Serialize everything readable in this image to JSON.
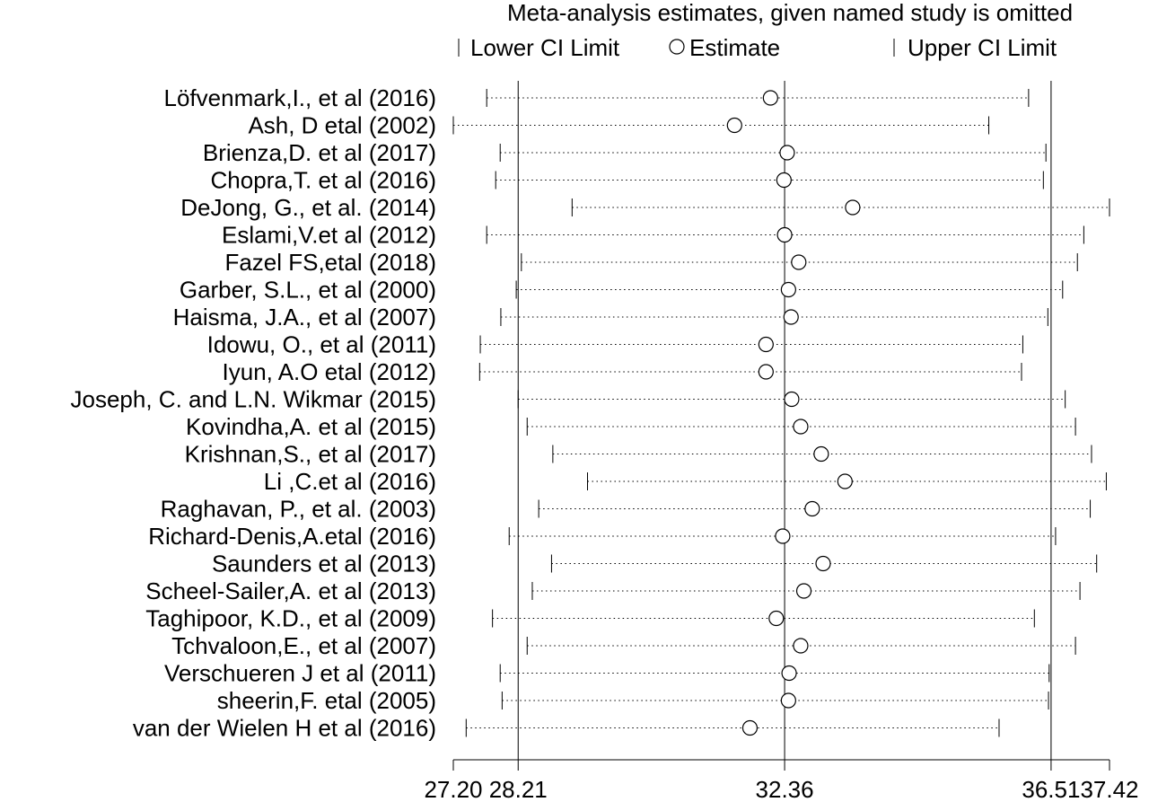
{
  "chart_data": {
    "type": "scatter",
    "title": "Meta-analysis estimates, given named study is omitted",
    "legend": {
      "placement": "top",
      "items": [
        {
          "symbol": "tick",
          "label": "Lower CI Limit"
        },
        {
          "symbol": "circle",
          "label": "Estimate"
        },
        {
          "symbol": "tick",
          "label": "Upper CI Limit"
        }
      ]
    },
    "x_ticks": [
      {
        "value": 27.2,
        "label": "27.20"
      },
      {
        "value": 28.21,
        "label": "28.21"
      },
      {
        "value": 32.36,
        "label": "32.36"
      },
      {
        "value": 36.51,
        "label": "36.51"
      },
      {
        "value": 37.42,
        "label": "37.42"
      }
    ],
    "vertical_reference_lines": [
      28.21,
      32.36,
      36.51
    ],
    "xlim": [
      27.2,
      37.42
    ],
    "studies": [
      {
        "label": "Löfvenmark,I., et al (2016)",
        "lower": 27.72,
        "estimate": 32.14,
        "upper": 36.16
      },
      {
        "label": "Ash, D etal  (2002)",
        "lower": 27.2,
        "estimate": 31.58,
        "upper": 35.54
      },
      {
        "label": "Brienza,D. et al (2017)",
        "lower": 27.93,
        "estimate": 32.4,
        "upper": 36.43
      },
      {
        "label": "Chopra,T. et al (2016)",
        "lower": 27.86,
        "estimate": 32.35,
        "upper": 36.39
      },
      {
        "label": "DeJong, G., et al. (2014)",
        "lower": 29.05,
        "estimate": 33.42,
        "upper": 37.42
      },
      {
        "label": "Eslami,V.et al (2012)",
        "lower": 27.72,
        "estimate": 32.36,
        "upper": 37.02
      },
      {
        "label": "Fazel FS,etal (2018)",
        "lower": 28.26,
        "estimate": 32.58,
        "upper": 36.92
      },
      {
        "label": "Garber, S.L., et al (2000)",
        "lower": 28.18,
        "estimate": 32.42,
        "upper": 36.69
      },
      {
        "label": "Haisma, J.A., et al  (2007)",
        "lower": 27.94,
        "estimate": 32.46,
        "upper": 36.46
      },
      {
        "label": "Idowu, O., et al  (2011)",
        "lower": 27.62,
        "estimate": 32.07,
        "upper": 36.07
      },
      {
        "label": "Iyun, A.O etal  (2012)",
        "lower": 27.61,
        "estimate": 32.07,
        "upper": 36.05
      },
      {
        "label": "Joseph, C. and L.N. Wikmar  (2015)",
        "lower": 28.21,
        "estimate": 32.47,
        "upper": 36.73
      },
      {
        "label": "Kovindha,A. et al (2015)",
        "lower": 28.35,
        "estimate": 32.61,
        "upper": 36.89
      },
      {
        "label": "Krishnan,S., et al  (2017)",
        "lower": 28.75,
        "estimate": 32.93,
        "upper": 37.14
      },
      {
        "label": "Li ,C.et al (2016)",
        "lower": 29.29,
        "estimate": 33.3,
        "upper": 37.37
      },
      {
        "label": "Raghavan, P., et al. (2003)",
        "lower": 28.53,
        "estimate": 32.79,
        "upper": 37.12
      },
      {
        "label": "Richard-Denis,A.etal (2016)",
        "lower": 28.07,
        "estimate": 32.33,
        "upper": 36.58
      },
      {
        "label": "Saunders et al (2013)",
        "lower": 28.73,
        "estimate": 32.96,
        "upper": 37.22
      },
      {
        "label": "Scheel-Sailer,A. et al (2013)",
        "lower": 28.43,
        "estimate": 32.66,
        "upper": 36.96
      },
      {
        "label": "Taghipoor, K.D., et al (2009)",
        "lower": 27.81,
        "estimate": 32.23,
        "upper": 36.25
      },
      {
        "label": "Tchvaloon,E., et al (2007)",
        "lower": 28.35,
        "estimate": 32.61,
        "upper": 36.89
      },
      {
        "label": "Verschueren J et al (2011)",
        "lower": 27.93,
        "estimate": 32.43,
        "upper": 36.48
      },
      {
        "label": "sheerin,F. etal (2005)",
        "lower": 27.96,
        "estimate": 32.42,
        "upper": 36.47
      },
      {
        "label": "van der Wielen H et al (2016)",
        "lower": 27.4,
        "estimate": 31.82,
        "upper": 35.7
      }
    ]
  }
}
